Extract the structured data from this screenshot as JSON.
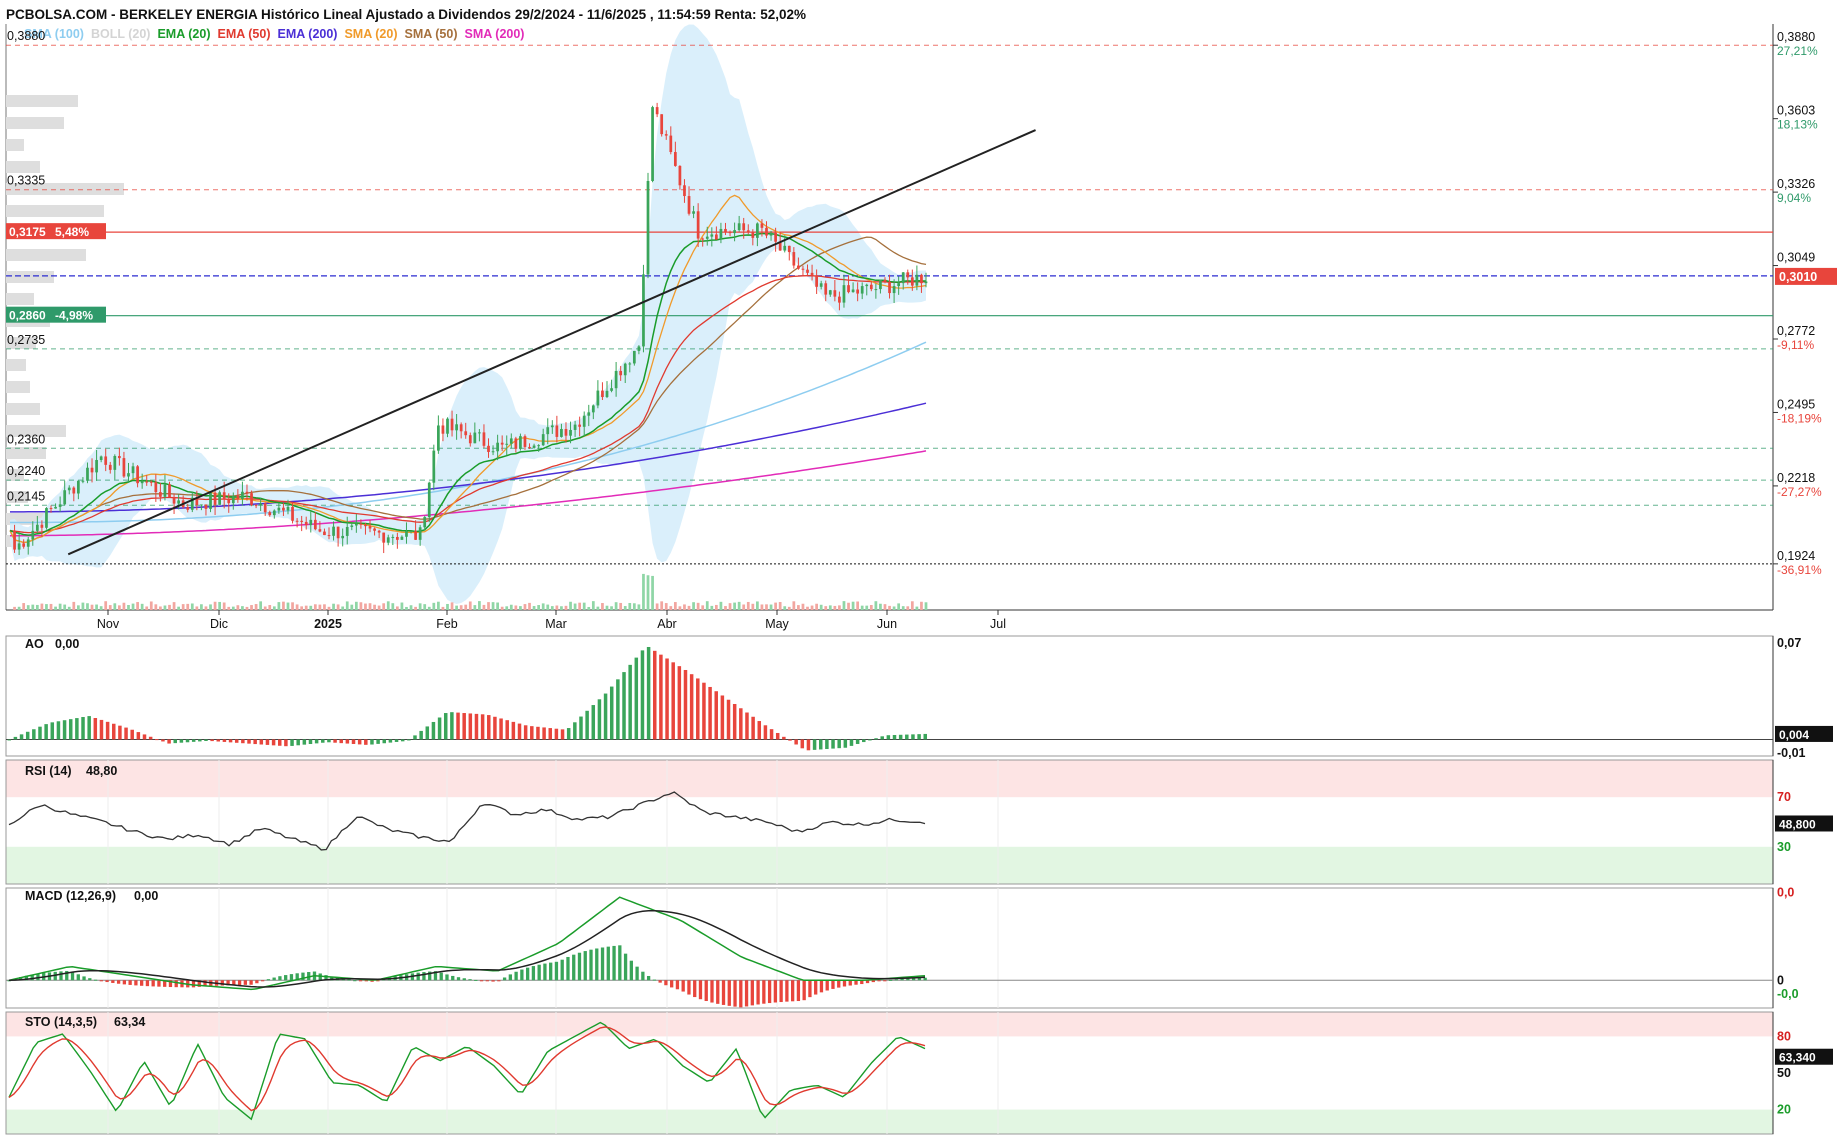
{
  "header": {
    "title": "PCBOLSA.COM - BERKELEY ENERGIA Histórico Lineal Ajustado a Dividendos 29/2/2024 - 11/6/2025 , 11:54:59 Renta: 52,02%"
  },
  "legend": [
    {
      "label": "SMA (100)",
      "color": "#8ecdf0"
    },
    {
      "label": "BOLL (20)",
      "color": "#d4d4d4"
    },
    {
      "label": "EMA (20)",
      "color": "#1a9c2a"
    },
    {
      "label": "EMA (50)",
      "color": "#e03a2f"
    },
    {
      "label": "EMA (200)",
      "color": "#4b2fd6"
    },
    {
      "label": "SMA (20)",
      "color": "#f09a2a"
    },
    {
      "label": "SMA (50)",
      "color": "#a5703c"
    },
    {
      "label": "SMA (200)",
      "color": "#e22bb8"
    }
  ],
  "colors": {
    "up": "#3aa55a",
    "down": "#e8453c",
    "boll_fill": "#d3ecfa",
    "trendline": "#222222",
    "resistance": "#e8453c",
    "support": "#2f9a6a",
    "current_price_line": "#2b2bd0",
    "overbought_zone": "#fde4e4",
    "oversold_zone": "#e2f6e2"
  },
  "chart_data": [
    {
      "type": "candlestick",
      "name": "price",
      "x_ticks": [
        {
          "label": "Nov",
          "bold": false
        },
        {
          "label": "Dic",
          "bold": false
        },
        {
          "label": "2025",
          "bold": true
        },
        {
          "label": "Feb",
          "bold": false
        },
        {
          "label": "Mar",
          "bold": false
        },
        {
          "label": "Abr",
          "bold": false
        },
        {
          "label": "May",
          "bold": false
        },
        {
          "label": "Jun",
          "bold": false
        },
        {
          "label": "Jul",
          "bold": false
        }
      ],
      "ylim": [
        0.175,
        0.396
      ],
      "right_axis": [
        {
          "price": "0,3880",
          "pct": "27,21%",
          "pct_color": "#2f9a6a"
        },
        {
          "price": "0,3603",
          "pct": "18,13%",
          "pct_color": "#2f9a6a"
        },
        {
          "price": "0,3326",
          "pct": "9,04%",
          "pct_color": "#2f9a6a"
        },
        {
          "price": "0,3049",
          "pct": "",
          "pct_color": "#2f9a6a"
        },
        {
          "price": "0,2772",
          "pct": "-9,11%",
          "pct_color": "#e8453c"
        },
        {
          "price": "0,2495",
          "pct": "-18,19%",
          "pct_color": "#e8453c"
        },
        {
          "price": "0,2218",
          "pct": "-27,27%",
          "pct_color": "#e8453c"
        },
        {
          "price": "0,1924",
          "pct": "-36,91%",
          "pct_color": "#e8453c"
        }
      ],
      "current_price": {
        "value": 0.301,
        "label": "0,3010"
      },
      "resistance": {
        "value": 0.3175,
        "label": "0,3175",
        "pct": "5,48%"
      },
      "support": {
        "value": 0.286,
        "label": "0,2860",
        "pct": "-4,98%"
      },
      "level_labels": [
        {
          "value": 0.388,
          "label": "0,3880",
          "color": "#e8453c"
        },
        {
          "value": 0.3335,
          "label": "0,3335",
          "color": "#e8453c"
        },
        {
          "value": 0.2735,
          "label": "0,2735",
          "color": "#2f9a6a"
        },
        {
          "value": 0.236,
          "label": "0,2360",
          "color": "#2f9a6a"
        },
        {
          "value": 0.224,
          "label": "0,2240",
          "color": "#2f9a6a"
        },
        {
          "value": 0.2145,
          "label": "0,2145",
          "color": "#2f9a6a"
        }
      ],
      "base_line": 0.1924,
      "trendline": {
        "from": [
          0.054,
          0.196
        ],
        "to": [
          0.67,
          0.356
        ]
      },
      "segments": [
        {
          "n": 20,
          "from": 0.196,
          "to": 0.233
        },
        {
          "n": 18,
          "from": 0.233,
          "to": 0.215
        },
        {
          "n": 14,
          "from": 0.215,
          "to": 0.218
        },
        {
          "n": 16,
          "from": 0.218,
          "to": 0.205
        },
        {
          "n": 22,
          "from": 0.205,
          "to": 0.203
        },
        {
          "n": 4,
          "from": 0.203,
          "to": 0.245
        },
        {
          "n": 14,
          "from": 0.245,
          "to": 0.236
        },
        {
          "n": 16,
          "from": 0.236,
          "to": 0.245
        },
        {
          "n": 14,
          "from": 0.245,
          "to": 0.275
        },
        {
          "n": 3,
          "from": 0.275,
          "to": 0.365
        },
        {
          "n": 10,
          "from": 0.365,
          "to": 0.318
        },
        {
          "n": 14,
          "from": 0.318,
          "to": 0.318
        },
        {
          "n": 14,
          "from": 0.318,
          "to": 0.293
        },
        {
          "n": 10,
          "from": 0.293,
          "to": 0.296
        },
        {
          "n": 12,
          "from": 0.296,
          "to": 0.301
        }
      ],
      "volume_profile": [
        0.36,
        0.29,
        0.09,
        0.17,
        0.59,
        0.49,
        0.42,
        0.4,
        0.24,
        0.14,
        0.22,
        0.15,
        0.1,
        0.12,
        0.17,
        0.3,
        0.2,
        0.09,
        0.11,
        0.22,
        0.06
      ]
    },
    {
      "type": "bar",
      "name": "AO",
      "label": "AO",
      "value_label": "0,00",
      "ylim": [
        -0.012,
        0.075
      ],
      "axis_labels": [
        {
          "value": 0.07,
          "label": "0,07"
        },
        {
          "value": -0.01,
          "label": "-0,01"
        }
      ],
      "current": {
        "value": 0.004,
        "label": "0,004"
      },
      "envelope": [
        0.0,
        0.012,
        0.017,
        0.008,
        -0.003,
        -0.001,
        -0.003,
        -0.005,
        -0.002,
        -0.004,
        -0.001,
        0.02,
        0.018,
        0.01,
        0.007,
        0.034,
        0.068,
        0.05,
        0.03,
        0.01,
        -0.008,
        -0.006,
        0.003,
        0.004
      ]
    },
    {
      "type": "line",
      "name": "RSI",
      "label": "RSI (14)",
      "value_label": "48,80",
      "ylim": [
        0,
        100
      ],
      "overbought": 70,
      "oversold": 30,
      "axis_labels": [
        {
          "value": 70,
          "label": "70"
        },
        {
          "value": 30,
          "label": "30"
        }
      ],
      "current": {
        "value": 48.8,
        "label": "48,800"
      },
      "envelope": [
        48,
        64,
        56,
        50,
        42,
        36,
        40,
        32,
        45,
        36,
        28,
        55,
        44,
        38,
        34,
        66,
        56,
        60,
        52,
        54,
        64,
        74,
        58,
        54,
        50,
        42,
        50,
        48,
        52,
        50
      ]
    },
    {
      "type": "line",
      "name": "MACD",
      "label": "MACD (12,26,9)",
      "value_label": "0,00",
      "ylim": [
        -0.006,
        0.02
      ],
      "axis_labels": [
        {
          "value": 0.019,
          "label": "0,0"
        },
        {
          "value": 0.0,
          "label": "0"
        },
        {
          "value": -0.003,
          "label": "-0,0"
        }
      ],
      "envelope": [
        0.0,
        0.003,
        0.001,
        -0.001,
        -0.002,
        0.001,
        0.0,
        0.003,
        0.002,
        0.008,
        0.018,
        0.013,
        0.005,
        0.0,
        0.0,
        0.001
      ]
    },
    {
      "type": "line",
      "name": "STO",
      "label": "STO (14,3,5)",
      "value_label": "63,34",
      "ylim": [
        0,
        100
      ],
      "overbought": 80,
      "oversold": 20,
      "axis_labels": [
        {
          "value": 80,
          "label": "80"
        },
        {
          "value": 50,
          "label": "50"
        },
        {
          "value": 20,
          "label": "20"
        }
      ],
      "current": {
        "value": 63.34,
        "label": "63,340"
      },
      "envelope": [
        30,
        75,
        82,
        52,
        18,
        60,
        22,
        74,
        30,
        12,
        82,
        78,
        42,
        40,
        26,
        72,
        60,
        72,
        56,
        32,
        68,
        80,
        92,
        70,
        78,
        56,
        42,
        70,
        12,
        36,
        40,
        30,
        58,
        80,
        70
      ]
    }
  ]
}
